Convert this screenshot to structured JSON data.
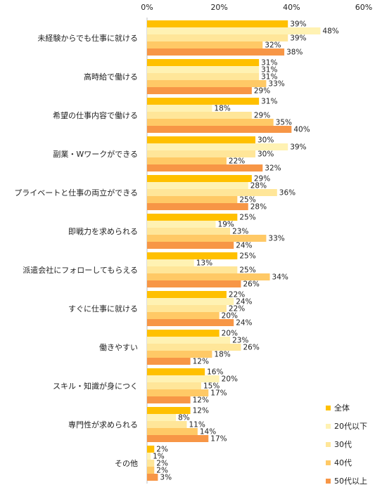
{
  "chart_data": {
    "type": "bar",
    "orientation": "horizontal",
    "title": "",
    "xlabel": "",
    "ylabel": "",
    "xlim": [
      0,
      60
    ],
    "ticks": [
      0,
      20,
      40,
      60
    ],
    "tick_labels": [
      "0%",
      "20%",
      "40%",
      "60%"
    ],
    "grid": false,
    "legend_position": "right-bottom",
    "value_suffix": "%",
    "categories": [
      "未経験からでも仕事に就ける",
      "高時給で働ける",
      "希望の仕事内容で働ける",
      "副業・Wワークができる",
      "プライベートと仕事の両立ができる",
      "即戦力を求められる",
      "派遣会社にフォローしてもらえる",
      "すぐに仕事に就ける",
      "働きやすい",
      "スキル・知識が身につく",
      "専門性が求められる",
      "その他"
    ],
    "series": [
      {
        "name": "全体",
        "color": "#FFC000",
        "values": [
          39,
          31,
          31,
          30,
          29,
          25,
          25,
          22,
          20,
          16,
          12,
          2
        ]
      },
      {
        "name": "20代以下",
        "color": "#FFF2B3",
        "values": [
          48,
          31,
          18,
          39,
          28,
          19,
          13,
          24,
          23,
          20,
          8,
          1
        ]
      },
      {
        "name": "30代",
        "color": "#FFE699",
        "values": [
          39,
          31,
          29,
          30,
          36,
          23,
          25,
          22,
          26,
          15,
          11,
          2
        ]
      },
      {
        "name": "40代",
        "color": "#FFC966",
        "values": [
          32,
          33,
          35,
          22,
          25,
          33,
          34,
          20,
          18,
          17,
          14,
          2
        ]
      },
      {
        "name": "50代以上",
        "color": "#F79646",
        "values": [
          38,
          29,
          40,
          32,
          28,
          24,
          26,
          24,
          12,
          12,
          17,
          3
        ]
      }
    ]
  }
}
